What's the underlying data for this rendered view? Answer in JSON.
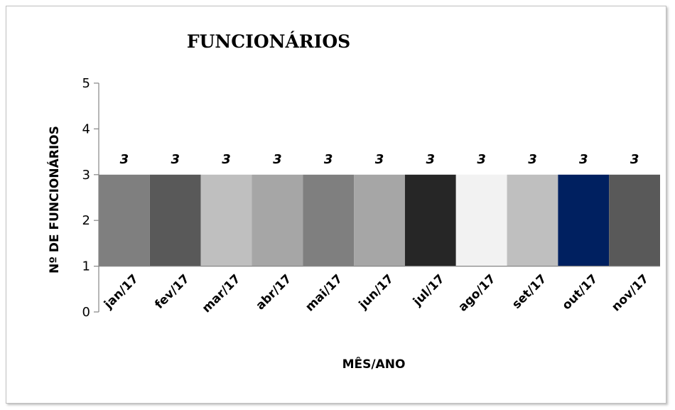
{
  "chart_data": {
    "type": "bar",
    "title": "FUNCIONÁRIOS",
    "xlabel": "MÊS/ANO",
    "ylabel": "Nº DE FUNCIONÁRIOS",
    "categories": [
      "jan/17",
      "fev/17",
      "mar/17",
      "abr/17",
      "mai/17",
      "jun/17",
      "jul/17",
      "ago/17",
      "set/17",
      "out/17",
      "nov/17"
    ],
    "values": [
      3,
      3,
      3,
      3,
      3,
      3,
      3,
      3,
      3,
      3,
      3
    ],
    "base": 1,
    "ylim": [
      0,
      5
    ],
    "yticks": [
      "0",
      "1",
      "2",
      "3",
      "4",
      "5"
    ],
    "data_labels": [
      "3",
      "3",
      "3",
      "3",
      "3",
      "3",
      "3",
      "3",
      "3",
      "3",
      "3"
    ],
    "colors": [
      "#7f7f7f",
      "#595959",
      "#bfbfbf",
      "#a6a6a6",
      "#7f7f7f",
      "#a6a6a6",
      "#262626",
      "#f2f2f2",
      "#bfbfbf",
      "#002060",
      "#595959"
    ],
    "grid": false,
    "legend": "none"
  }
}
